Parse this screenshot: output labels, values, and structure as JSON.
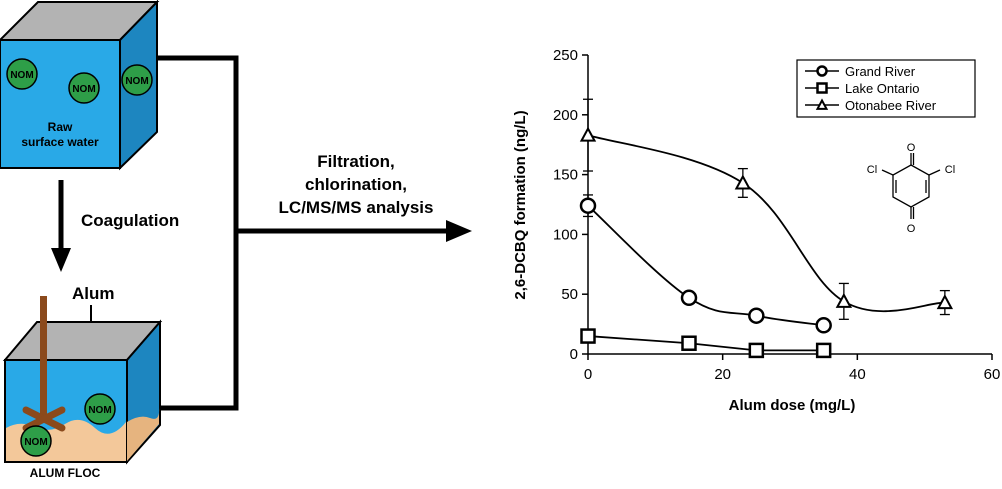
{
  "raw_tank": {
    "label_line1": "Raw",
    "label_line2": "surface water",
    "nom_label": "NOM"
  },
  "coagulation_label": "Coagulation",
  "alum_label": "Alum",
  "floc_tank": {
    "floc_label": "ALUM FLOC",
    "nom_label": "NOM"
  },
  "process": {
    "line1": "Filtration,",
    "line2": "chlorination,",
    "line3": "LC/MS/MS analysis"
  },
  "molecule": {
    "o_top": "O",
    "o_bottom": "O",
    "cl_left": "Cl",
    "cl_right": "Cl"
  },
  "colors": {
    "water": "#29a9e7",
    "water_dark": "#1d86c0",
    "nom_green": "#2e9e48",
    "floc": "#f3c89a",
    "stirrer": "#8b4a1c"
  },
  "chart_data": {
    "type": "line",
    "xlabel": "Alum dose (mg/L)",
    "ylabel": "2,6-DCBQ formation (ng/L)",
    "xlim": [
      0,
      60
    ],
    "ylim": [
      0,
      250
    ],
    "xticks": [
      "0",
      "20",
      "40",
      "60"
    ],
    "yticks": [
      "0",
      "50",
      "100",
      "150",
      "200",
      "250"
    ],
    "legend_position": "top-right",
    "series": [
      {
        "name": "Grand River",
        "marker": "circle",
        "points": [
          {
            "x": 0,
            "y": 124,
            "err": 9
          },
          {
            "x": 15,
            "y": 47,
            "err": 0
          },
          {
            "x": 25,
            "y": 32,
            "err": 0
          },
          {
            "x": 35,
            "y": 24,
            "err": 0
          }
        ]
      },
      {
        "name": "Lake Ontario",
        "marker": "square",
        "points": [
          {
            "x": 0,
            "y": 15,
            "err": 0
          },
          {
            "x": 15,
            "y": 9,
            "err": 0
          },
          {
            "x": 25,
            "y": 3,
            "err": 0
          },
          {
            "x": 35,
            "y": 3,
            "err": 0
          }
        ]
      },
      {
        "name": "Otonabee River",
        "marker": "triangle",
        "points": [
          {
            "x": 0,
            "y": 183,
            "err": 30
          },
          {
            "x": 23,
            "y": 143,
            "err": 12
          },
          {
            "x": 38,
            "y": 44,
            "err": 15
          },
          {
            "x": 53,
            "y": 43,
            "err": 10
          }
        ]
      }
    ]
  }
}
